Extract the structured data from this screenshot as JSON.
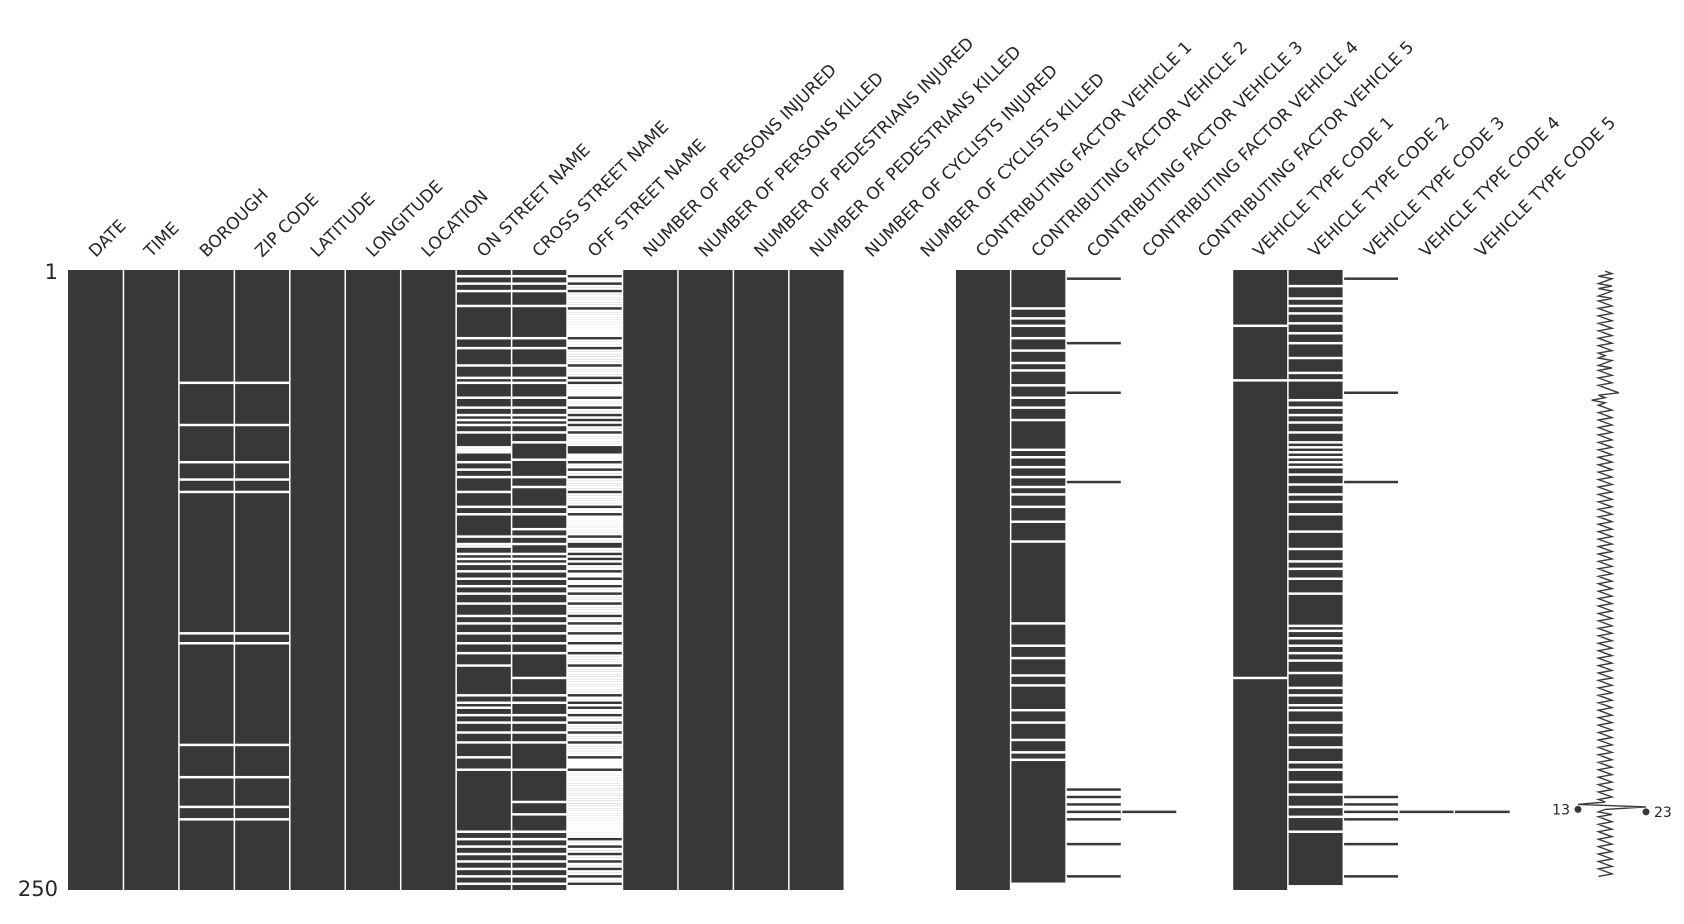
{
  "chart_data": {
    "type": "heatmap",
    "fill_color": "#383838",
    "background_color": "#ffffff",
    "row_count": 250,
    "row_start_label": "1",
    "row_end_label": "250",
    "columns": [
      {
        "name": "DATE",
        "missing_rows": []
      },
      {
        "name": "TIME",
        "missing_rows": []
      },
      {
        "name": "BOROUGH",
        "missing_rows": [
          46,
          63,
          78,
          85,
          90,
          147,
          151,
          192,
          205,
          217,
          222
        ]
      },
      {
        "name": "ZIP CODE",
        "missing_rows": [
          46,
          63,
          78,
          85,
          90,
          147,
          151,
          192,
          205,
          217,
          222
        ]
      },
      {
        "name": "LATITUDE",
        "missing_rows": []
      },
      {
        "name": "LONGITUDE",
        "missing_rows": []
      },
      {
        "name": "LOCATION",
        "missing_rows": []
      },
      {
        "name": "ON STREET NAME",
        "missing_rows": [
          3,
          6,
          9,
          15,
          28,
          32,
          39,
          44,
          46,
          52,
          56,
          59,
          61,
          63,
          66,
          72,
          73,
          74,
          78,
          81,
          84,
          90,
          96,
          99,
          108,
          111,
          112,
          115,
          117,
          119,
          122,
          125,
          128,
          131,
          135,
          140,
          143,
          147,
          151,
          155,
          160,
          172,
          175,
          177,
          180,
          183,
          187,
          191,
          197,
          202,
          227,
          230,
          233,
          236,
          239,
          242,
          245,
          248
        ]
      },
      {
        "name": "CROSS STREET NAME",
        "missing_rows": [
          3,
          6,
          9,
          15,
          28,
          32,
          39,
          44,
          46,
          52,
          56,
          59,
          61,
          63,
          66,
          70,
          77,
          84,
          88,
          96,
          99,
          105,
          108,
          111,
          115,
          117,
          119,
          122,
          125,
          128,
          131,
          135,
          140,
          143,
          147,
          151,
          155,
          165,
          172,
          175,
          180,
          183,
          187,
          191,
          202,
          215,
          220,
          227,
          230,
          233,
          236,
          239,
          242,
          245,
          248
        ]
      },
      {
        "name": "OFF STREET NAME",
        "missing_rows": [
          1,
          2,
          4,
          5,
          7,
          8,
          10,
          11,
          12,
          13,
          14,
          15,
          17,
          18,
          19,
          20,
          21,
          22,
          23,
          24,
          25,
          26,
          27,
          29,
          30,
          31,
          33,
          34,
          35,
          36,
          37,
          38,
          40,
          41,
          42,
          43,
          45,
          47,
          48,
          49,
          50,
          51,
          53,
          54,
          55,
          57,
          58,
          60,
          62,
          64,
          65,
          67,
          68,
          69,
          70,
          71,
          75,
          76,
          77,
          79,
          80,
          82,
          83,
          85,
          86,
          87,
          88,
          89,
          91,
          92,
          93,
          94,
          95,
          97,
          98,
          100,
          101,
          102,
          103,
          104,
          105,
          106,
          107,
          109,
          110,
          113,
          114,
          116,
          118,
          120,
          121,
          123,
          124,
          126,
          127,
          129,
          130,
          132,
          133,
          134,
          136,
          137,
          138,
          139,
          141,
          142,
          144,
          145,
          146,
          148,
          149,
          150,
          152,
          153,
          154,
          156,
          157,
          158,
          159,
          161,
          162,
          163,
          164,
          165,
          166,
          167,
          168,
          169,
          170,
          171,
          173,
          174,
          176,
          178,
          179,
          181,
          182,
          184,
          185,
          186,
          188,
          189,
          190,
          192,
          193,
          194,
          195,
          196,
          198,
          199,
          200,
          201,
          203,
          204,
          205,
          206,
          207,
          208,
          209,
          210,
          211,
          212,
          213,
          214,
          215,
          216,
          217,
          218,
          219,
          220,
          221,
          222,
          223,
          224,
          225,
          226,
          227,
          228,
          229,
          231,
          232,
          234,
          235,
          237,
          238,
          240,
          241,
          243,
          244,
          246,
          247,
          249,
          250
        ]
      },
      {
        "name": "NUMBER OF PERSONS INJURED",
        "missing_rows": []
      },
      {
        "name": "NUMBER OF PERSONS KILLED",
        "missing_rows": []
      },
      {
        "name": "NUMBER OF PEDESTRIANS INJURED",
        "missing_rows": []
      },
      {
        "name": "NUMBER OF PEDESTRIANS KILLED",
        "missing_rows": []
      },
      {
        "name": "NUMBER OF CYCLISTS INJURED",
        "missing_rows": "all"
      },
      {
        "name": "NUMBER OF CYCLISTS KILLED",
        "missing_rows": "all"
      },
      {
        "name": "CONTRIBUTING FACTOR VEHICLE 1",
        "missing_rows": []
      },
      {
        "name": "CONTRIBUTING FACTOR VEHICLE 2",
        "missing_rows": [
          16,
          20,
          23,
          28,
          33,
          38,
          41,
          47,
          52,
          56,
          61,
          73,
          76,
          80,
          84,
          88,
          91,
          96,
          102,
          110,
          143,
          152,
          157,
          164,
          168,
          178,
          183,
          190,
          195,
          198,
          248,
          249,
          250
        ]
      },
      {
        "name": "CONTRIBUTING FACTOR VEHICLE 3",
        "present_rows": [
          4,
          30,
          50,
          86,
          210,
          213,
          216,
          219,
          222,
          232,
          245
        ]
      },
      {
        "name": "CONTRIBUTING FACTOR VEHICLE 4",
        "present_rows": [
          219
        ]
      },
      {
        "name": "CONTRIBUTING FACTOR VEHICLE 5",
        "missing_rows": "all"
      },
      {
        "name": "VEHICLE TYPE CODE 1",
        "missing_rows": [
          23,
          45,
          165
        ]
      },
      {
        "name": "VEHICLE TYPE CODE 2",
        "missing_rows": [
          7,
          12,
          15,
          18,
          22,
          26,
          30,
          36,
          42,
          45,
          53,
          56,
          59,
          62,
          66,
          70,
          72,
          74,
          76,
          78,
          80,
          83,
          87,
          91,
          94,
          99,
          106,
          113,
          118,
          121,
          125,
          131,
          144,
          146,
          149,
          152,
          155,
          158,
          163,
          169,
          172,
          176,
          178,
          183,
          188,
          193,
          199,
          202,
          207,
          212,
          217,
          221,
          227,
          249,
          250
        ]
      },
      {
        "name": "VEHICLE TYPE CODE 3",
        "present_rows": [
          4,
          50,
          86,
          213,
          216,
          219,
          222,
          232,
          245
        ]
      },
      {
        "name": "VEHICLE TYPE CODE 4",
        "present_rows": [
          219
        ]
      },
      {
        "name": "VEHICLE TYPE CODE 5",
        "present_rows": [
          219
        ]
      }
    ],
    "sparkline": {
      "min_label": "13",
      "max_label": "23",
      "min_row": 218,
      "max_row": 219,
      "min_value": 13,
      "max_value": 23,
      "baseline_value": 17,
      "values": [
        17,
        18,
        16,
        18,
        17,
        16,
        18,
        16,
        18,
        17,
        16,
        18,
        16,
        17,
        18,
        16,
        17,
        18,
        16,
        17,
        18,
        16,
        17,
        18,
        16,
        17,
        18,
        16,
        17,
        18,
        16,
        17,
        18,
        16,
        17,
        16,
        18,
        17,
        16,
        18,
        16,
        17,
        18,
        16,
        17,
        18,
        16,
        17,
        18,
        19,
        16,
        17,
        15,
        17,
        16,
        17,
        18,
        16,
        17,
        18,
        16,
        17,
        18,
        16,
        17,
        18,
        16,
        17,
        18,
        16,
        17,
        18,
        16,
        17,
        18,
        16,
        17,
        18,
        16,
        17,
        18,
        16,
        17,
        18,
        16,
        17,
        18,
        16,
        17,
        18,
        16,
        17,
        18,
        16,
        17,
        18,
        16,
        17,
        18,
        16,
        17,
        18,
        16,
        17,
        18,
        16,
        17,
        18,
        16,
        17,
        18,
        16,
        17,
        18,
        16,
        17,
        18,
        16,
        17,
        18,
        16,
        17,
        18,
        16,
        17,
        18,
        16,
        17,
        18,
        16,
        17,
        18,
        16,
        17,
        18,
        16,
        17,
        18,
        16,
        17,
        18,
        16,
        17,
        18,
        16,
        17,
        18,
        16,
        17,
        18,
        16,
        17,
        18,
        16,
        17,
        18,
        16,
        17,
        18,
        16,
        17,
        18,
        16,
        17,
        18,
        16,
        17,
        18,
        16,
        17,
        18,
        16,
        17,
        18,
        16,
        17,
        18,
        16,
        17,
        18,
        16,
        17,
        18,
        16,
        17,
        18,
        16,
        17,
        18,
        16,
        17,
        18,
        16,
        17,
        18,
        16,
        17,
        18,
        16,
        17,
        18,
        16,
        17,
        18,
        16,
        17,
        18,
        16,
        17,
        18,
        16,
        17,
        18,
        16,
        17,
        13,
        23,
        17,
        16,
        18,
        16,
        17,
        18,
        16,
        17,
        18,
        16,
        17,
        18,
        16,
        17,
        18,
        16,
        17,
        18,
        16,
        17,
        18,
        16,
        17,
        18,
        16,
        17,
        18,
        16
      ]
    }
  }
}
